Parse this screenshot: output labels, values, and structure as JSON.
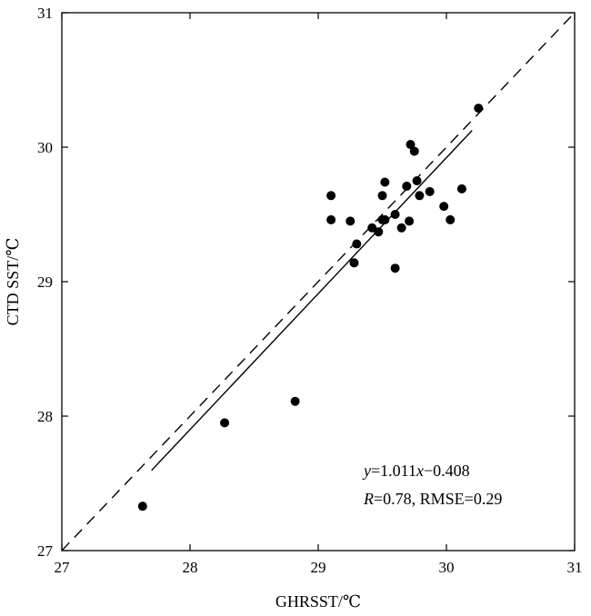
{
  "chart_data": {
    "type": "scatter",
    "xlabel": "GHRSST/℃",
    "ylabel": "CTD SST/℃",
    "xlim": [
      27,
      31
    ],
    "ylim": [
      27,
      31
    ],
    "x_ticks": [
      "27",
      "28",
      "29",
      "30",
      "31"
    ],
    "y_ticks": [
      "27",
      "28",
      "29",
      "30",
      "31"
    ],
    "grid": false,
    "series": [
      {
        "points": [
          [
            27.63,
            27.33
          ],
          [
            28.27,
            27.95
          ],
          [
            28.82,
            28.11
          ],
          [
            29.1,
            29.64
          ],
          [
            29.1,
            29.46
          ],
          [
            29.25,
            29.45
          ],
          [
            29.28,
            29.14
          ],
          [
            29.3,
            29.28
          ],
          [
            29.42,
            29.4
          ],
          [
            29.47,
            29.37
          ],
          [
            29.5,
            29.46
          ],
          [
            29.5,
            29.64
          ],
          [
            29.52,
            29.74
          ],
          [
            29.52,
            29.46
          ],
          [
            29.6,
            29.5
          ],
          [
            29.6,
            29.1
          ],
          [
            29.65,
            29.4
          ],
          [
            29.69,
            29.71
          ],
          [
            29.71,
            29.45
          ],
          [
            29.72,
            30.02
          ],
          [
            29.75,
            29.97
          ],
          [
            29.77,
            29.75
          ],
          [
            29.79,
            29.64
          ],
          [
            29.87,
            29.67
          ],
          [
            29.98,
            29.56
          ],
          [
            30.03,
            29.46
          ],
          [
            30.12,
            29.69
          ],
          [
            30.25,
            30.29
          ]
        ]
      }
    ],
    "fit_line": {
      "slope": 1.011,
      "intercept": -0.408,
      "x_range": [
        27.7,
        30.2
      ],
      "style": "solid"
    },
    "reference_line": {
      "slope": 1,
      "intercept": 0,
      "style": "dashed"
    },
    "annotation": {
      "equation": {
        "y": "y",
        "eq": "=1.011",
        "x": "x",
        "rest": "−0.408"
      },
      "stats": {
        "r": "R",
        "rest": "=0.78, RMSE=0.29"
      }
    }
  }
}
